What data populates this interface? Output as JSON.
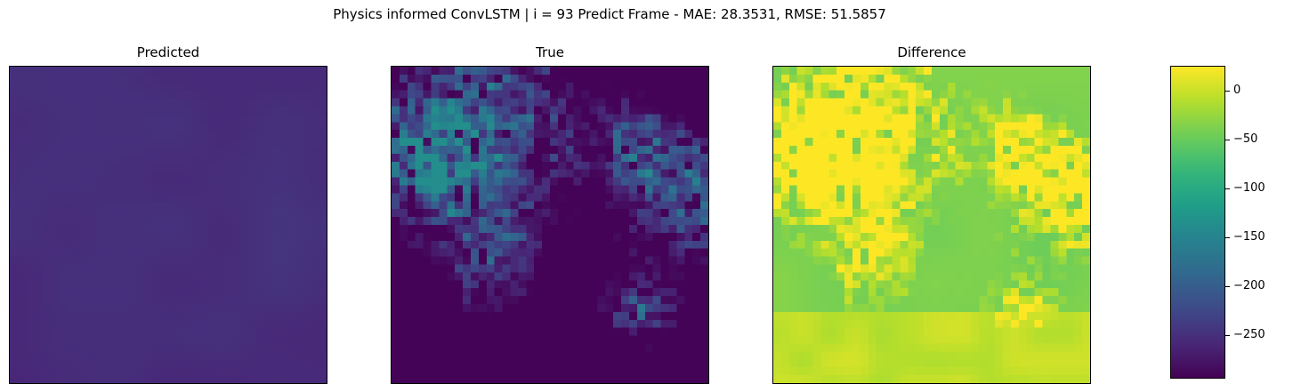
{
  "suptitle": "Physics informed ConvLSTM | i = 93 Predict Frame - MAE: 28.3531, RMSE: 51.5857",
  "chart_data": [
    {
      "type": "heatmap",
      "title": "Predicted",
      "grid_shape": [
        40,
        40
      ],
      "xticks": [],
      "yticks": [],
      "description_values": "smooth field, values roughly -260 to -245 across the frame",
      "value_range": [
        -262,
        -240
      ]
    },
    {
      "type": "heatmap",
      "title": "True",
      "grid_shape": [
        40,
        40
      ],
      "xticks": [],
      "yticks": [],
      "value_range": [
        -295,
        -140
      ]
    },
    {
      "type": "heatmap",
      "title": "Difference",
      "grid_shape": [
        40,
        40
      ],
      "xticks": [],
      "yticks": [],
      "value_range": [
        -295,
        25
      ]
    }
  ],
  "colorbar": {
    "colormap": "viridis",
    "range": [
      -295,
      25
    ],
    "ticks": [
      {
        "value": 0,
        "label": "0"
      },
      {
        "value": -50,
        "label": "−50"
      },
      {
        "value": -100,
        "label": "−100"
      },
      {
        "value": -150,
        "label": "−150"
      },
      {
        "value": -200,
        "label": "−200"
      },
      {
        "value": -250,
        "label": "−250"
      }
    ]
  },
  "colors": {
    "viridis_low": "#440154",
    "viridis_mid": "#21918c",
    "viridis_high": "#fde725"
  }
}
